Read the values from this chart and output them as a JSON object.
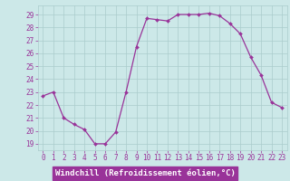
{
  "x": [
    0,
    1,
    2,
    3,
    4,
    5,
    6,
    7,
    8,
    9,
    10,
    11,
    12,
    13,
    14,
    15,
    16,
    17,
    18,
    19,
    20,
    21,
    22,
    23
  ],
  "y": [
    22.7,
    23.0,
    21.0,
    20.5,
    20.1,
    19.0,
    19.0,
    19.9,
    23.0,
    26.5,
    28.7,
    28.6,
    28.5,
    29.0,
    29.0,
    29.0,
    29.1,
    28.9,
    28.3,
    27.5,
    25.7,
    24.3,
    22.2,
    21.8
  ],
  "line_color": "#993399",
  "marker": "D",
  "marker_size": 2.0,
  "bg_color": "#cce8e8",
  "grid_color": "#aacccc",
  "xlabel": "Windchill (Refroidissement éolien,°C)",
  "xlabel_color": "#ffffff",
  "xlabel_bg": "#993399",
  "ylabel_ticks": [
    19,
    20,
    21,
    22,
    23,
    24,
    25,
    26,
    27,
    28,
    29
  ],
  "ylim": [
    18.5,
    29.7
  ],
  "xlim": [
    -0.5,
    23.5
  ],
  "tick_label_color": "#993399",
  "tick_fontsize": 5.5,
  "xlabel_fontsize": 6.5
}
